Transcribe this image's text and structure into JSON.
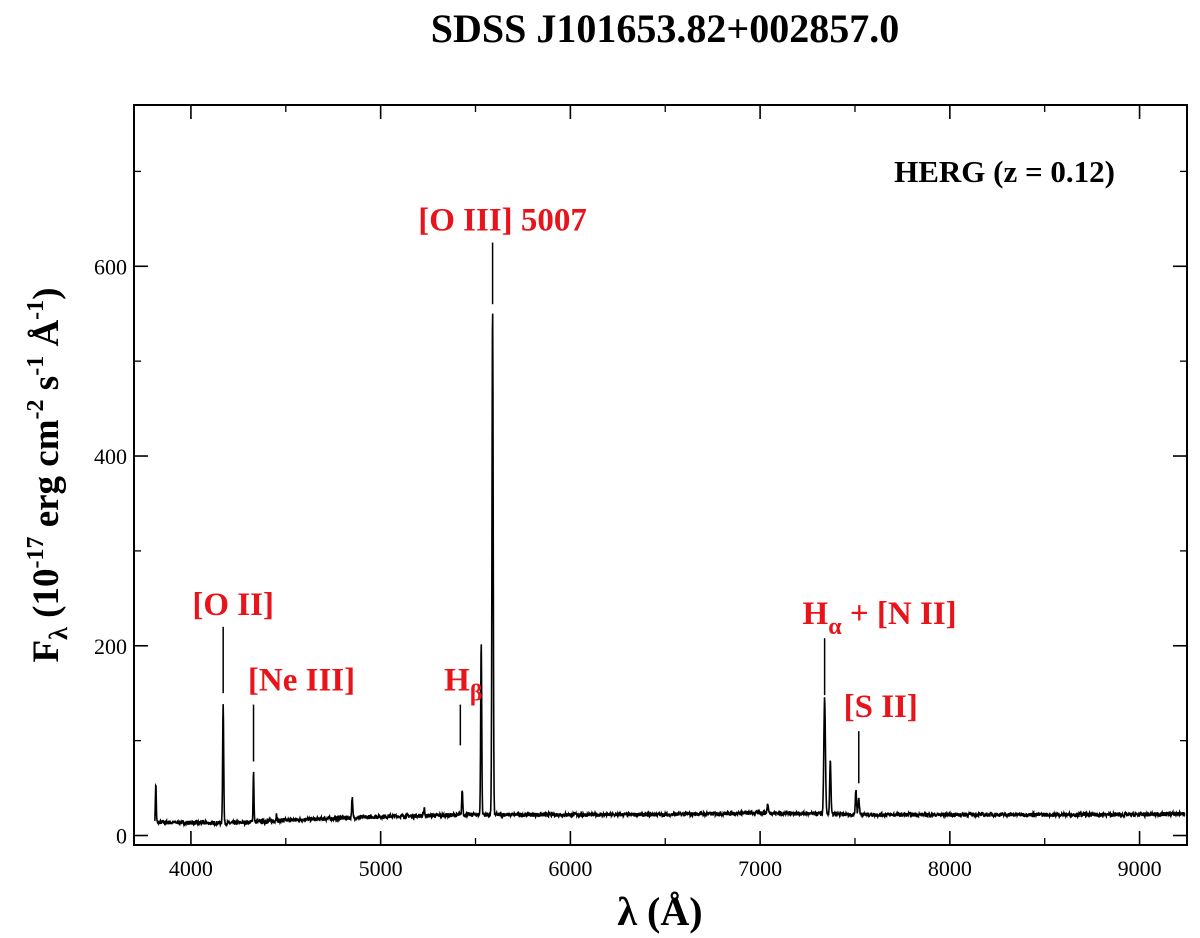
{
  "chart_data": {
    "type": "line",
    "title": "SDSS J101653.82+002857.0",
    "xlabel": {
      "main": "λ (",
      "unit": "Å",
      "close": ")"
    },
    "ylabel": {
      "f": "F",
      "f_sub": "λ",
      "pre": " (10",
      "exp1": "-17",
      "mid1": " erg cm",
      "exp2": "-2",
      "mid2": " s",
      "exp3": "-1",
      "mid3": " Å",
      "exp4": "-1",
      "close": ")"
    },
    "xlim": [
      3700,
      9250
    ],
    "ylim": [
      -10,
      770
    ],
    "xticks": [
      4000,
      5000,
      6000,
      7000,
      8000,
      9000
    ],
    "yticks": [
      0,
      200,
      400,
      600
    ],
    "class_label": "HERG (z = 0.12)",
    "label_color": "#e8141b",
    "line_color": "#000000",
    "series": [
      {
        "continuum": [
          [
            3810,
            14
          ],
          [
            4200,
            13
          ],
          [
            4500,
            16
          ],
          [
            5000,
            20
          ],
          [
            5500,
            22
          ],
          [
            6000,
            22
          ],
          [
            6500,
            22
          ],
          [
            7000,
            24
          ],
          [
            7500,
            22
          ],
          [
            8000,
            22
          ],
          [
            8500,
            22
          ],
          [
            9000,
            22
          ],
          [
            9240,
            23
          ]
        ],
        "lines": [
          {
            "x": 3815,
            "peak": 55,
            "w": 5
          },
          {
            "x": 4170,
            "peak": 140,
            "w": 6
          },
          {
            "x": 4330,
            "peak": 68,
            "w": 5
          },
          {
            "x": 4450,
            "peak": 22,
            "w": 5
          },
          {
            "x": 4850,
            "peak": 40,
            "w": 6
          },
          {
            "x": 5230,
            "peak": 30,
            "w": 5
          },
          {
            "x": 5430,
            "peak": 48,
            "w": 6
          },
          {
            "x": 5530,
            "peak": 205,
            "w": 6
          },
          {
            "x": 5590,
            "peak": 558,
            "w": 7
          },
          {
            "x": 7040,
            "peak": 33,
            "w": 7
          },
          {
            "x": 7340,
            "peak": 145,
            "w": 9
          },
          {
            "x": 7370,
            "peak": 80,
            "w": 7
          },
          {
            "x": 7505,
            "peak": 48,
            "w": 7
          },
          {
            "x": 7520,
            "peak": 40,
            "w": 7
          }
        ]
      }
    ],
    "annotations": [
      {
        "label": "[O II]",
        "x": 4170,
        "y_top": 220,
        "y_bottom": 150
      },
      {
        "label": "[Ne III]",
        "x": 4330,
        "y_top": 138,
        "y_bottom": 78
      },
      {
        "label": "H",
        "sub": "β",
        "x": 5420,
        "y_top": 138,
        "y_bottom": 95
      },
      {
        "label": "[O III] 5007",
        "x": 5590,
        "y_top": 625,
        "y_bottom": 560
      },
      {
        "label": "H",
        "sub": "α",
        "suffix": " + [N II]",
        "x": 7340,
        "y_top": 208,
        "y_bottom": 148
      },
      {
        "label": "[S II]",
        "x": 7520,
        "y_top": 110,
        "y_bottom": 55
      }
    ]
  }
}
